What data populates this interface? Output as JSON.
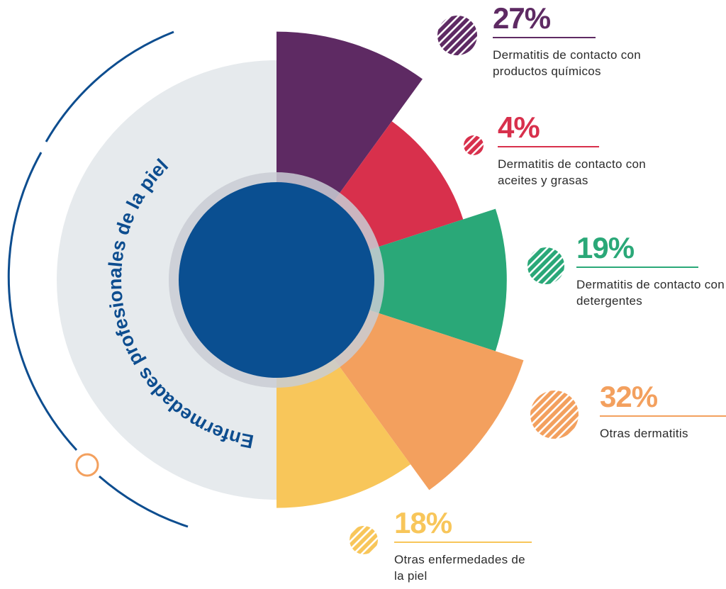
{
  "chart_data": {
    "type": "rose",
    "title": "Enfermedades profesionales de la piel",
    "categories": [
      "Dermatitis de contacto con productos químicos",
      "Dermatitis de contacto con aceites y grasas",
      "Dermatitis de contacto con detergentes",
      "Otras dermatitis",
      "Otras enfermedades de la piel"
    ],
    "values": [
      27,
      4,
      19,
      32,
      18
    ],
    "value_labels": [
      "27%",
      "4%",
      "19%",
      "32%",
      "18%"
    ],
    "colors": [
      "#5e2a63",
      "#d8304c",
      "#2aa878",
      "#f3a05e",
      "#f8c65a"
    ]
  }
}
